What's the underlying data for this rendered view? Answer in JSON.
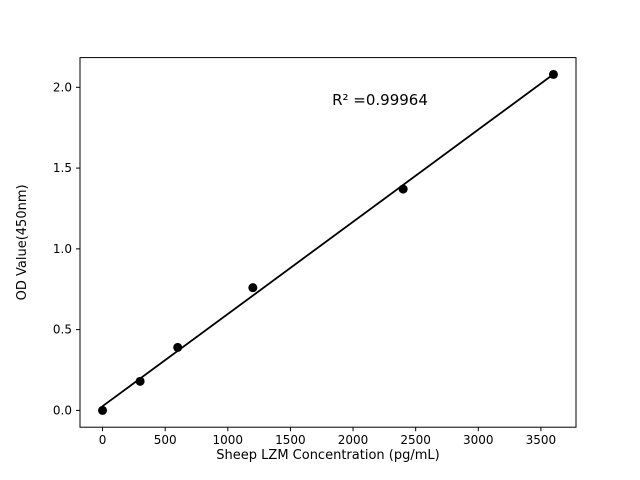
{
  "chart_data": {
    "type": "scatter",
    "title": "",
    "xlabel": "Sheep LZM Concentration (pg/mL)",
    "ylabel": "OD Value(450nm)",
    "annotation": "R² =0.99964",
    "x": [
      0,
      300,
      600,
      1200,
      2400,
      3600
    ],
    "y": [
      0.0,
      0.18,
      0.39,
      0.76,
      1.37,
      2.08
    ],
    "fit_line": {
      "x": [
        0,
        3600
      ],
      "y": [
        0.026,
        2.081
      ]
    },
    "xlim": [
      -180,
      3780
    ],
    "ylim": [
      -0.104,
      2.184
    ],
    "xticks": [
      0,
      500,
      1000,
      1500,
      2000,
      2500,
      3000,
      3500
    ],
    "xtick_labels": [
      "0",
      "500",
      "1000",
      "1500",
      "2000",
      "2500",
      "3000",
      "3500"
    ],
    "yticks": [
      0.0,
      0.5,
      1.0,
      1.5,
      2.0
    ],
    "ytick_labels": [
      "0.0",
      "0.5",
      "1.0",
      "1.5",
      "2.0"
    ],
    "legend": null,
    "grid": false,
    "marker_color": "#000000",
    "line_color": "#000000",
    "background": "#ffffff"
  }
}
